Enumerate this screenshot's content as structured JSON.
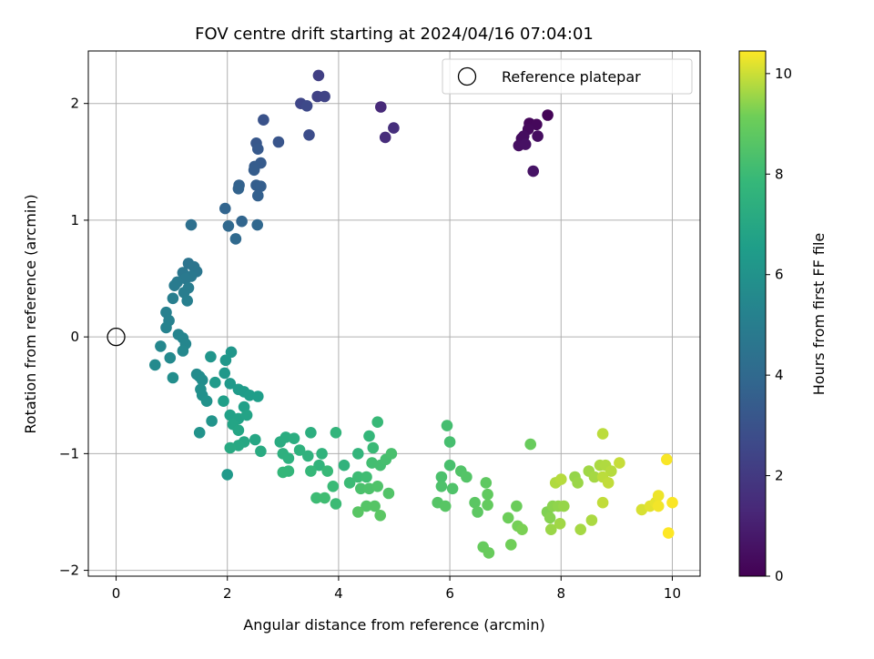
{
  "chart_data": {
    "type": "scatter",
    "title": "FOV centre drift starting at 2024/04/16 07:04:01",
    "xlabel": "Angular distance from reference (arcmin)",
    "ylabel": "Rotation from reference (arcmin)",
    "xlim": [
      -0.5,
      10.5
    ],
    "ylim": [
      -2.05,
      2.45
    ],
    "xticks": [
      0,
      2,
      4,
      6,
      8,
      10
    ],
    "yticks": [
      -2,
      -1,
      0,
      1,
      2
    ],
    "xtick_labels": [
      "0",
      "2",
      "4",
      "6",
      "8",
      "10"
    ],
    "ytick_labels": [
      "−2",
      "−1",
      "0",
      "1",
      "2"
    ],
    "grid": true,
    "legend": {
      "placement": "top-right",
      "entries": [
        {
          "label": "Reference platepar",
          "marker": "open-circle"
        }
      ]
    },
    "reference_point": {
      "x": 0,
      "y": 0
    },
    "colorbar": {
      "label": "Hours from first FF file",
      "colormap": "viridis",
      "range": [
        0,
        10.45
      ],
      "ticks": [
        0,
        2,
        4,
        6,
        8,
        10
      ],
      "tick_labels": [
        "0",
        "2",
        "4",
        "6",
        "8",
        "10"
      ]
    },
    "points": [
      [
        7.76,
        1.9,
        0.1
      ],
      [
        7.43,
        1.83,
        0.2
      ],
      [
        7.56,
        1.82,
        0.25
      ],
      [
        7.41,
        1.78,
        0.3
      ],
      [
        7.29,
        1.7,
        0.35
      ],
      [
        7.33,
        1.72,
        0.4
      ],
      [
        7.58,
        1.72,
        0.45
      ],
      [
        7.24,
        1.64,
        0.5
      ],
      [
        7.36,
        1.65,
        0.55
      ],
      [
        7.5,
        1.42,
        0.6
      ],
      [
        4.76,
        1.97,
        1.4
      ],
      [
        4.84,
        1.71,
        1.5
      ],
      [
        4.99,
        1.79,
        1.6
      ],
      [
        3.64,
        2.24,
        2.2
      ],
      [
        3.62,
        2.06,
        2.3
      ],
      [
        3.75,
        2.06,
        2.4
      ],
      [
        3.32,
        2.0,
        2.5
      ],
      [
        3.43,
        1.98,
        2.6
      ],
      [
        3.47,
        1.73,
        2.8
      ],
      [
        2.65,
        1.86,
        3.0
      ],
      [
        2.92,
        1.67,
        3.1
      ],
      [
        2.52,
        1.66,
        3.2
      ],
      [
        2.55,
        1.61,
        3.3
      ],
      [
        2.6,
        1.49,
        3.35
      ],
      [
        2.49,
        1.46,
        3.4
      ],
      [
        2.48,
        1.43,
        3.45
      ],
      [
        2.52,
        1.3,
        3.5
      ],
      [
        2.6,
        1.29,
        3.55
      ],
      [
        2.55,
        1.21,
        3.6
      ],
      [
        2.21,
        1.3,
        3.65
      ],
      [
        2.2,
        1.27,
        3.7
      ],
      [
        1.96,
        1.1,
        3.8
      ],
      [
        2.26,
        0.99,
        3.85
      ],
      [
        2.54,
        0.96,
        3.9
      ],
      [
        2.02,
        0.95,
        3.95
      ],
      [
        2.15,
        0.84,
        4.0
      ],
      [
        1.35,
        0.96,
        4.3
      ],
      [
        1.3,
        0.63,
        4.5
      ],
      [
        1.4,
        0.6,
        4.55
      ],
      [
        1.45,
        0.56,
        4.6
      ],
      [
        1.2,
        0.55,
        4.65
      ],
      [
        1.35,
        0.52,
        4.7
      ],
      [
        1.25,
        0.5,
        4.75
      ],
      [
        1.1,
        0.47,
        4.8
      ],
      [
        1.05,
        0.44,
        4.85
      ],
      [
        1.3,
        0.42,
        4.9
      ],
      [
        1.22,
        0.38,
        4.95
      ],
      [
        1.02,
        0.33,
        5.0
      ],
      [
        1.28,
        0.31,
        5.05
      ],
      [
        0.9,
        0.21,
        5.1
      ],
      [
        0.95,
        0.14,
        5.15
      ],
      [
        0.9,
        0.08,
        5.2
      ],
      [
        1.12,
        0.02,
        5.3
      ],
      [
        1.2,
        -0.01,
        5.35
      ],
      [
        1.25,
        -0.06,
        5.4
      ],
      [
        0.8,
        -0.08,
        5.45
      ],
      [
        1.2,
        -0.12,
        5.5
      ],
      [
        0.97,
        -0.18,
        5.55
      ],
      [
        0.7,
        -0.24,
        5.6
      ],
      [
        1.45,
        -0.32,
        5.65
      ],
      [
        1.5,
        -0.34,
        5.7
      ],
      [
        1.55,
        -0.37,
        5.75
      ],
      [
        1.02,
        -0.35,
        5.8
      ],
      [
        1.52,
        -0.45,
        5.85
      ],
      [
        1.55,
        -0.5,
        5.9
      ],
      [
        1.63,
        -0.55,
        5.95
      ],
      [
        1.5,
        -0.82,
        6.0
      ],
      [
        1.72,
        -0.72,
        6.05
      ],
      [
        1.7,
        -0.17,
        6.1
      ],
      [
        2.07,
        -0.13,
        6.15
      ],
      [
        1.97,
        -0.2,
        6.2
      ],
      [
        1.95,
        -0.31,
        6.25
      ],
      [
        2.05,
        -0.4,
        6.3
      ],
      [
        1.78,
        -0.39,
        6.35
      ],
      [
        2.2,
        -0.45,
        6.4
      ],
      [
        2.3,
        -0.47,
        6.45
      ],
      [
        2.4,
        -0.5,
        6.5
      ],
      [
        2.55,
        -0.51,
        6.55
      ],
      [
        1.93,
        -0.55,
        6.6
      ],
      [
        2.3,
        -0.6,
        6.65
      ],
      [
        2.05,
        -0.67,
        6.7
      ],
      [
        2.2,
        -0.7,
        6.75
      ],
      [
        2.35,
        -0.67,
        6.8
      ],
      [
        2.1,
        -0.75,
        6.85
      ],
      [
        2.2,
        -0.8,
        6.9
      ],
      [
        2.5,
        -0.88,
        6.95
      ],
      [
        2.3,
        -0.9,
        7.0
      ],
      [
        2.2,
        -0.93,
        7.05
      ],
      [
        2.05,
        -0.95,
        7.1
      ],
      [
        2.6,
        -0.98,
        7.15
      ],
      [
        2.0,
        -1.18,
        6.3
      ],
      [
        2.95,
        -0.9,
        7.2
      ],
      [
        3.05,
        -0.86,
        7.25
      ],
      [
        3.2,
        -0.87,
        7.3
      ],
      [
        3.5,
        -0.82,
        7.35
      ],
      [
        3.0,
        -1.0,
        7.4
      ],
      [
        3.1,
        -1.04,
        7.45
      ],
      [
        3.3,
        -0.97,
        7.5
      ],
      [
        3.45,
        -1.02,
        7.55
      ],
      [
        3.7,
        -1.0,
        7.6
      ],
      [
        3.65,
        -1.1,
        7.65
      ],
      [
        3.95,
        -0.82,
        7.7
      ],
      [
        3.1,
        -1.15,
        7.75
      ],
      [
        3.0,
        -1.16,
        7.8
      ],
      [
        3.5,
        -1.15,
        7.85
      ],
      [
        3.8,
        -1.15,
        7.9
      ],
      [
        3.9,
        -1.28,
        7.95
      ],
      [
        3.95,
        -1.43,
        8.0
      ],
      [
        3.6,
        -1.38,
        8.05
      ],
      [
        3.75,
        -1.38,
        8.1
      ],
      [
        4.1,
        -1.1,
        7.6
      ],
      [
        4.35,
        -1.0,
        7.7
      ],
      [
        4.55,
        -0.85,
        7.8
      ],
      [
        4.7,
        -0.73,
        7.9
      ],
      [
        4.62,
        -0.95,
        7.95
      ],
      [
        4.2,
        -1.25,
        8.0
      ],
      [
        4.35,
        -1.2,
        8.05
      ],
      [
        4.5,
        -1.2,
        8.1
      ],
      [
        4.6,
        -1.08,
        8.15
      ],
      [
        4.75,
        -1.1,
        8.2
      ],
      [
        4.85,
        -1.05,
        8.25
      ],
      [
        4.95,
        -1.0,
        8.3
      ],
      [
        4.4,
        -1.3,
        8.35
      ],
      [
        4.55,
        -1.3,
        8.4
      ],
      [
        4.7,
        -1.28,
        8.45
      ],
      [
        4.9,
        -1.34,
        8.5
      ],
      [
        4.5,
        -1.45,
        8.55
      ],
      [
        4.65,
        -1.45,
        8.6
      ],
      [
        4.35,
        -1.5,
        8.65
      ],
      [
        4.75,
        -1.53,
        8.7
      ],
      [
        5.95,
        -0.76,
        8.2
      ],
      [
        6.0,
        -0.9,
        8.25
      ],
      [
        6.0,
        -1.1,
        8.3
      ],
      [
        5.85,
        -1.2,
        8.35
      ],
      [
        5.85,
        -1.28,
        8.4
      ],
      [
        6.05,
        -1.3,
        8.45
      ],
      [
        6.2,
        -1.15,
        8.5
      ],
      [
        6.3,
        -1.2,
        8.55
      ],
      [
        5.78,
        -1.42,
        8.6
      ],
      [
        5.92,
        -1.45,
        8.65
      ],
      [
        6.45,
        -1.42,
        8.7
      ],
      [
        6.5,
        -1.5,
        8.75
      ],
      [
        6.65,
        -1.25,
        8.8
      ],
      [
        6.68,
        -1.35,
        8.85
      ],
      [
        6.68,
        -1.44,
        8.9
      ],
      [
        6.6,
        -1.8,
        8.95
      ],
      [
        6.7,
        -1.85,
        9.0
      ],
      [
        7.45,
        -0.92,
        9.0
      ],
      [
        7.2,
        -1.45,
        9.05
      ],
      [
        7.05,
        -1.55,
        9.1
      ],
      [
        7.1,
        -1.78,
        9.15
      ],
      [
        7.22,
        -1.62,
        9.2
      ],
      [
        7.3,
        -1.65,
        9.25
      ],
      [
        7.75,
        -1.5,
        9.3
      ],
      [
        7.8,
        -1.55,
        9.35
      ],
      [
        7.85,
        -1.45,
        9.4
      ],
      [
        7.95,
        -1.45,
        9.45
      ],
      [
        8.05,
        -1.45,
        9.5
      ],
      [
        7.82,
        -1.65,
        9.55
      ],
      [
        7.98,
        -1.6,
        9.6
      ],
      [
        8.35,
        -1.65,
        9.65
      ],
      [
        8.55,
        -1.57,
        9.7
      ],
      [
        7.9,
        -1.25,
        9.75
      ],
      [
        8.0,
        -1.22,
        9.8
      ],
      [
        8.25,
        -1.2,
        9.5
      ],
      [
        8.3,
        -1.25,
        9.55
      ],
      [
        8.5,
        -1.15,
        9.6
      ],
      [
        8.6,
        -1.2,
        9.65
      ],
      [
        8.7,
        -1.1,
        9.7
      ],
      [
        8.8,
        -1.1,
        9.75
      ],
      [
        8.9,
        -1.15,
        9.8
      ],
      [
        8.75,
        -1.2,
        9.85
      ],
      [
        8.85,
        -1.25,
        9.9
      ],
      [
        9.05,
        -1.08,
        9.95
      ],
      [
        8.75,
        -0.83,
        9.85
      ],
      [
        8.75,
        -1.42,
        9.9
      ],
      [
        9.45,
        -1.48,
        10.1
      ],
      [
        9.6,
        -1.45,
        10.2
      ],
      [
        9.7,
        -1.42,
        10.25
      ],
      [
        9.75,
        -1.36,
        10.3
      ],
      [
        9.75,
        -1.45,
        10.35
      ],
      [
        9.9,
        -1.05,
        10.4
      ],
      [
        10.0,
        -1.42,
        10.42
      ],
      [
        9.93,
        -1.68,
        10.45
      ]
    ]
  }
}
